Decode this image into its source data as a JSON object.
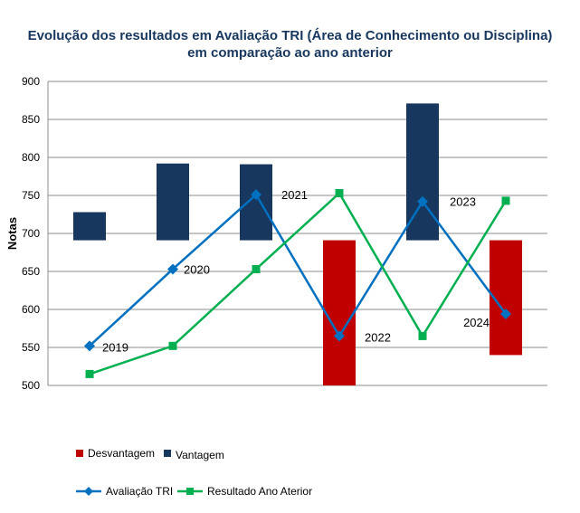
{
  "chart_data": {
    "type": "bar",
    "title_line1": "Evolução dos resultados em Avaliação TRI (Área de Conhecimento ou Disciplina)",
    "title_line2": "em comparação ao ano anterior",
    "ylabel": "Notas",
    "ylim": [
      500,
      900
    ],
    "yticks": [
      500,
      550,
      600,
      650,
      700,
      750,
      800,
      850,
      900
    ],
    "grid": true,
    "legend_position": "bottom",
    "categories": [
      "2019",
      "2020",
      "2021",
      "2022",
      "2023",
      "2024"
    ],
    "bar_baseline": 691,
    "bar_series": [
      {
        "name": "Desvantagem",
        "color": "#c00000",
        "values": [
          null,
          null,
          null,
          500,
          null,
          540
        ]
      },
      {
        "name": "Vantagem",
        "color": "#17375e",
        "values": [
          728,
          792,
          791,
          null,
          871,
          null
        ]
      }
    ],
    "line_series": [
      {
        "name": "Avaliação TRI",
        "color": "#0070c0",
        "marker": "diamond",
        "values": [
          552,
          653,
          751,
          565,
          742,
          594
        ]
      },
      {
        "name": "Resultado Ano Aterior",
        "color": "#00b050",
        "marker": "square",
        "values": [
          515,
          552,
          653,
          753,
          565,
          743
        ]
      }
    ],
    "point_labels": [
      "2019",
      "2020",
      "2021",
      "2022",
      "2023",
      "2024"
    ]
  }
}
